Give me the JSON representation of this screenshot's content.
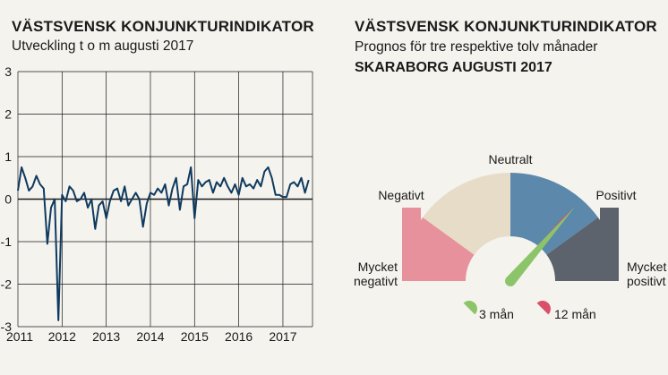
{
  "left_panel": {
    "title": "VÄSTSVENSK KONJUNKTURINDIKATOR",
    "subtitle": "Utveckling t o m augusti 2017"
  },
  "right_panel": {
    "title": "VÄSTSVENSK KONJUNKTURINDIKATOR",
    "subtitle": "Prognos för tre respektive tolv månader",
    "region": "SKARABORG AUGUSTI 2017"
  },
  "colors": {
    "line": "#0e3a5f",
    "grid": "#1a1a1a",
    "mycket_negativt": "#e6919b",
    "negativt": "#e7dcc8",
    "positivt": "#5b88ab",
    "mycket_positivt": "#5d636d",
    "needle_3man": "#8cc46a",
    "needle_12man": "#d9506a"
  },
  "chart_data": [
    {
      "type": "line",
      "title": "VÄSTSVENSK KONJUNKTURINDIKATOR",
      "subtitle": "Utveckling t o m augusti 2017",
      "xlabel": "",
      "ylabel": "",
      "x_ticks": [
        "2011",
        "2012",
        "2013",
        "2014",
        "2015",
        "2016",
        "2017"
      ],
      "y_ticks": [
        "3",
        "2",
        "1",
        "0",
        "-1",
        "-2",
        "-3"
      ],
      "xlim": [
        2011.0,
        2017.67
      ],
      "ylim": [
        -3,
        3
      ],
      "grid": true,
      "series": [
        {
          "name": "",
          "x": [
            2011.0,
            2011.083,
            2011.167,
            2011.25,
            2011.333,
            2011.417,
            2011.5,
            2011.583,
            2011.667,
            2011.75,
            2011.833,
            2011.917,
            2012.0,
            2012.083,
            2012.167,
            2012.25,
            2012.333,
            2012.417,
            2012.5,
            2012.583,
            2012.667,
            2012.75,
            2012.833,
            2012.917,
            2013.0,
            2013.083,
            2013.167,
            2013.25,
            2013.333,
            2013.417,
            2013.5,
            2013.583,
            2013.667,
            2013.75,
            2013.833,
            2013.917,
            2014.0,
            2014.083,
            2014.167,
            2014.25,
            2014.333,
            2014.417,
            2014.5,
            2014.583,
            2014.667,
            2014.75,
            2014.833,
            2014.917,
            2015.0,
            2015.083,
            2015.167,
            2015.25,
            2015.333,
            2015.417,
            2015.5,
            2015.583,
            2015.667,
            2015.75,
            2015.833,
            2015.917,
            2016.0,
            2016.083,
            2016.167,
            2016.25,
            2016.333,
            2016.417,
            2016.5,
            2016.583,
            2016.667,
            2016.75,
            2016.833,
            2016.917,
            2017.0,
            2017.083,
            2017.167,
            2017.25,
            2017.333,
            2017.417,
            2017.5,
            2017.583
          ],
          "y": [
            0.2,
            0.75,
            0.5,
            0.2,
            0.3,
            0.55,
            0.35,
            0.25,
            -1.05,
            -0.2,
            0.0,
            -2.85,
            0.1,
            -0.05,
            0.3,
            0.2,
            -0.05,
            0.0,
            0.15,
            -0.2,
            0.0,
            -0.7,
            -0.15,
            -0.05,
            -0.45,
            -0.05,
            0.2,
            0.25,
            -0.05,
            0.3,
            -0.15,
            0.0,
            0.15,
            0.0,
            -0.65,
            -0.1,
            0.15,
            0.1,
            0.25,
            0.15,
            0.35,
            -0.15,
            0.25,
            0.5,
            -0.25,
            0.3,
            0.35,
            0.75,
            -0.45,
            0.45,
            0.3,
            0.4,
            0.45,
            0.15,
            0.4,
            0.3,
            0.5,
            0.3,
            0.15,
            0.35,
            0.1,
            0.5,
            0.3,
            0.35,
            0.25,
            0.45,
            0.3,
            0.65,
            0.75,
            0.5,
            0.1,
            0.1,
            0.05,
            0.05,
            0.35,
            0.4,
            0.3,
            0.5,
            0.15,
            0.45
          ]
        }
      ]
    },
    {
      "type": "gauge",
      "title": "VÄSTSVENSK KONJUNKTURINDIKATOR",
      "subtitle": "Prognos för tre respektive tolv månader",
      "region": "SKARABORG AUGUSTI 2017",
      "segments": [
        {
          "label_lines": [
            "Mycket",
            "negativt"
          ],
          "color_key": "mycket_negativt"
        },
        {
          "label_lines": [
            "Negativt"
          ],
          "color_key": "negativt"
        },
        {
          "label_lines": [
            "Neutralt"
          ],
          "color_key": "neutral"
        },
        {
          "label_lines": [
            "Positivt"
          ],
          "color_key": "positivt"
        },
        {
          "label_lines": [
            "Mycket",
            "positivt"
          ],
          "color_key": "mycket_positivt"
        }
      ],
      "needles": [
        {
          "name": "3 mån",
          "angle_deg_from_left": 131,
          "color_key": "needle_3man"
        },
        {
          "name": "12 mån",
          "angle_deg_from_left": 130,
          "color_key": "needle_12man"
        }
      ],
      "legend": [
        {
          "label": "3 mån",
          "color_key": "needle_3man"
        },
        {
          "label": "12 mån",
          "color_key": "needle_12man"
        }
      ]
    }
  ]
}
